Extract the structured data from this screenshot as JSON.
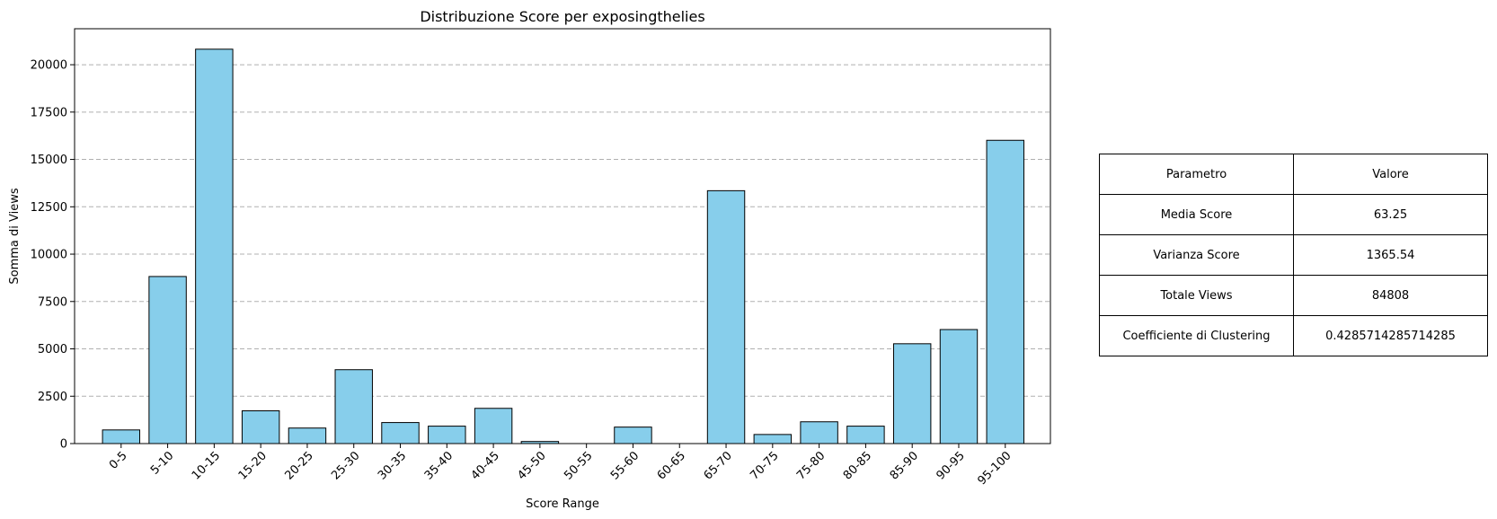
{
  "chart_data": {
    "type": "bar",
    "title": "Distribuzione Score per exposingthelies",
    "xlabel": "Score Range",
    "ylabel": "Somma di Views",
    "categories": [
      "0-5",
      "5-10",
      "10-15",
      "15-20",
      "20-25",
      "25-30",
      "30-35",
      "35-40",
      "40-45",
      "45-50",
      "50-55",
      "55-60",
      "60-65",
      "65-70",
      "70-75",
      "75-80",
      "80-85",
      "85-90",
      "90-95",
      "95-100"
    ],
    "values": [
      720,
      8820,
      20820,
      1730,
      820,
      3900,
      1110,
      920,
      1860,
      110,
      0,
      870,
      0,
      13350,
      480,
      1150,
      920,
      5270,
      6020,
      16010
    ],
    "ylim": [
      0,
      21900
    ],
    "yticks": [
      0,
      2500,
      5000,
      7500,
      10000,
      12500,
      15000,
      17500,
      20000
    ],
    "grid": "y dashed",
    "bar_color": "#87ceeb",
    "bar_edge_color": "#000000"
  },
  "table": {
    "headers": [
      "Parametro",
      "Valore"
    ],
    "rows": [
      [
        "Media Score",
        "63.25"
      ],
      [
        "Varianza Score",
        "1365.54"
      ],
      [
        "Totale Views",
        "84808"
      ],
      [
        "Coefficiente di Clustering",
        "0.4285714285714285"
      ]
    ]
  }
}
